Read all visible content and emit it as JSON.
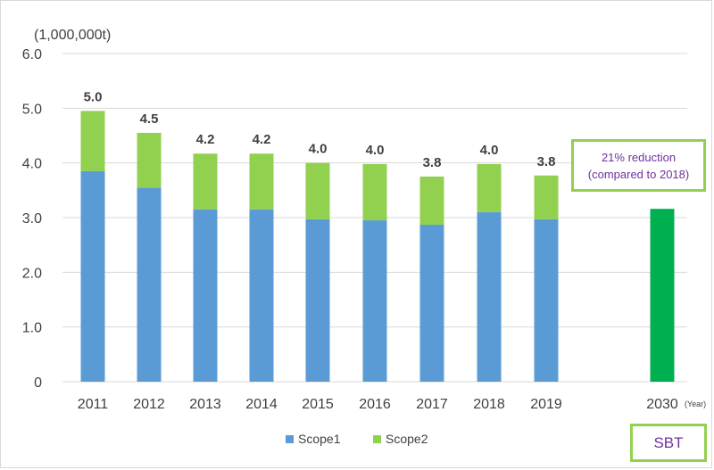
{
  "chart_data": {
    "type": "bar",
    "stacked": true,
    "unit_label": "(1,000,000t)",
    "x_unit_label": "(Year)",
    "categories": [
      "2011",
      "2012",
      "2013",
      "2014",
      "2015",
      "2016",
      "2017",
      "2018",
      "2019",
      "2030"
    ],
    "yticks": [
      "6.0",
      "5.0",
      "4.0",
      "3.0",
      "2.0",
      "1.0",
      "0"
    ],
    "ylim": [
      0,
      6
    ],
    "grid": true,
    "series": [
      {
        "name": "Scope1",
        "color": "#5b9bd5",
        "values": [
          3.85,
          3.55,
          3.15,
          3.15,
          2.97,
          2.95,
          2.87,
          3.1,
          2.97,
          null
        ]
      },
      {
        "name": "Scope2",
        "color": "#92d050",
        "values": [
          1.1,
          1.0,
          1.02,
          1.02,
          1.03,
          1.03,
          0.88,
          0.88,
          0.8,
          null
        ]
      }
    ],
    "target": {
      "category": "2030",
      "value": 3.16,
      "color": "#00b050"
    },
    "totals": [
      "5.0",
      "4.5",
      "4.2",
      "4.2",
      "4.0",
      "4.0",
      "3.8",
      "4.0",
      "3.8"
    ],
    "legend": {
      "position": "bottom",
      "entries": [
        "Scope1",
        "Scope2"
      ]
    },
    "annotation_lines": [
      "21% reduction",
      "(compared to 2018)"
    ],
    "badge": "SBT"
  }
}
